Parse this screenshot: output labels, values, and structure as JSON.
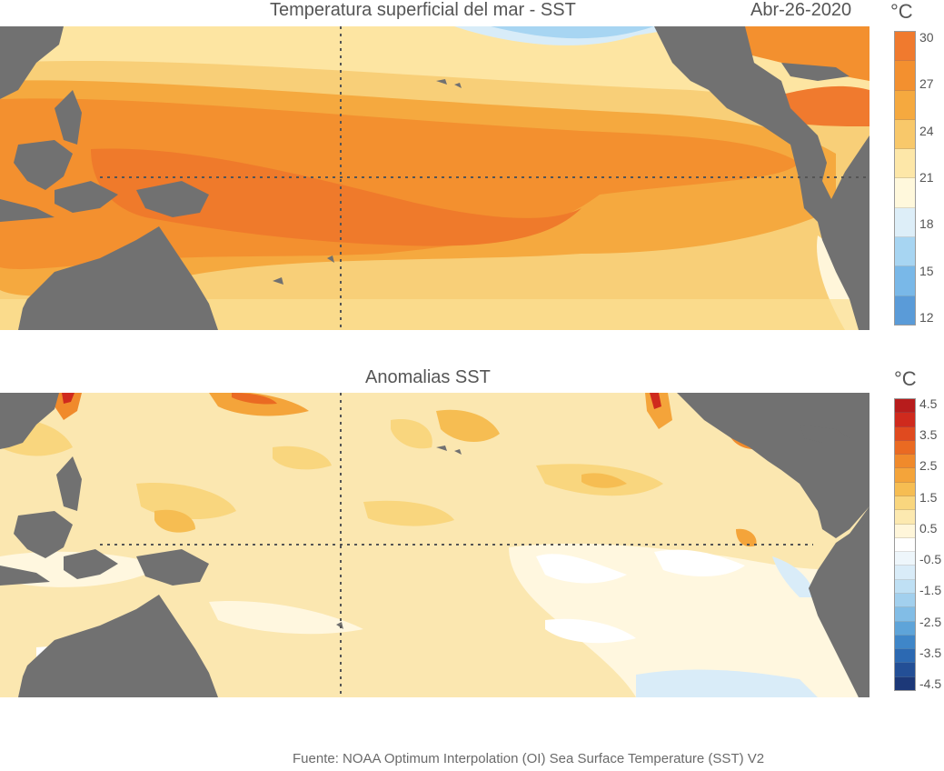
{
  "panels": {
    "sst": {
      "title": "Temperatura superficial del mar - SST",
      "date": "Abr-26-2020",
      "unit": "°C",
      "colorbar_ticks": [
        "30",
        "27",
        "24",
        "21",
        "18",
        "15",
        "12"
      ],
      "colorbar_colors": [
        "#f07a2e",
        "#f3902f",
        "#f5a93f",
        "#f8c86a",
        "#fde7a8",
        "#fff8dc",
        "#ddeef8",
        "#a7d5f2",
        "#79b8e8",
        "#5a9bd8"
      ]
    },
    "anomaly": {
      "title": "Anomalias SST",
      "unit": "°C",
      "colorbar_ticks": [
        "4.5",
        "3.5",
        "2.5",
        "1.5",
        "0.5",
        "-0.5",
        "-1.5",
        "-2.5",
        "-3.5",
        "-4.5"
      ],
      "colorbar_colors": [
        "#b71c1c",
        "#cf2a1d",
        "#e04a1f",
        "#ea6a22",
        "#f08a2b",
        "#f4a43a",
        "#f6bd52",
        "#f9d67e",
        "#fce9b0",
        "#fff6da",
        "#ffffff",
        "#eef6fb",
        "#d9ecf8",
        "#bfe0f4",
        "#a2d0ee",
        "#82bde6",
        "#5ea4d9",
        "#3f86c8",
        "#2c69b2",
        "#234f96",
        "#1c3878"
      ]
    }
  },
  "source": "Fuente: NOAA Optimum Interpolation (OI) Sea Surface Temperature (SST) V2"
}
